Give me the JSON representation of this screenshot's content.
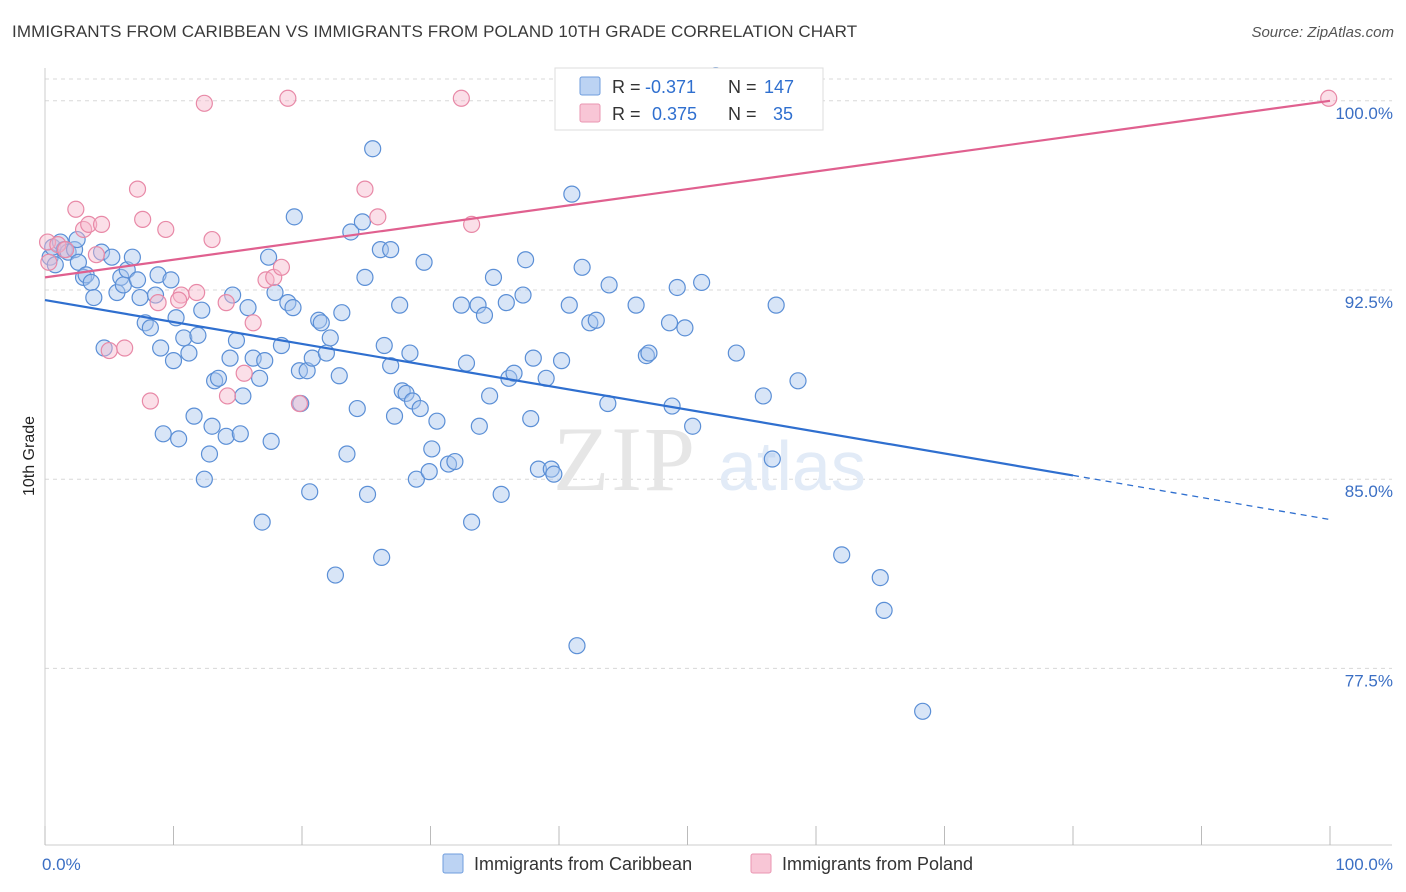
{
  "title": "IMMIGRANTS FROM CARIBBEAN VS IMMIGRANTS FROM POLAND 10TH GRADE CORRELATION CHART",
  "source": "Source: ZipAtlas.com",
  "watermark": {
    "zip": "ZIP",
    "atlas": "atlas"
  },
  "colors": {
    "blue_fill": "#a9c6ee",
    "blue_stroke": "#5b8fd6",
    "blue_line": "#2f6fcf",
    "pink_fill": "#f6b8cc",
    "pink_stroke": "#e889a7",
    "pink_line": "#e0608f",
    "grid": "#d8d8d8",
    "tick_text": "#3b6fc4"
  },
  "legend": {
    "rows": [
      {
        "r_label": "R =",
        "r_value": "-0.371",
        "n_label": "N =",
        "n_value": "147"
      },
      {
        "r_label": "R =",
        "r_value": "0.375",
        "n_label": "N =",
        "n_value": "35"
      }
    ]
  },
  "chart_data": {
    "type": "scatter",
    "title": "IMMIGRANTS FROM CARIBBEAN VS IMMIGRANTS FROM POLAND 10TH GRADE CORRELATION CHART",
    "xlabel": "",
    "ylabel": "10th Grade",
    "xlim": [
      0,
      100
    ],
    "ylim": [
      70.5,
      101.3
    ],
    "x_tick_labels": [
      "0.0%",
      "100.0%"
    ],
    "y_ticks": [
      77.5,
      85.0,
      92.5,
      100.0
    ],
    "y_tick_labels": [
      "77.5%",
      "85.0%",
      "92.5%",
      "100.0%"
    ],
    "grid": true,
    "legend_position": "top-center",
    "series": [
      {
        "name": "Immigrants from Caribbean",
        "r": -0.371,
        "n": 147,
        "trend": {
          "x": [
            0,
            80,
            100
          ],
          "y": [
            92.1,
            85.15,
            83.4
          ],
          "solid_until": 80
        },
        "points": [
          [
            0.4,
            93.8
          ],
          [
            0.6,
            94.2
          ],
          [
            0.8,
            93.5
          ],
          [
            1.2,
            94.4
          ],
          [
            1.5,
            94.1
          ],
          [
            1.8,
            94.0
          ],
          [
            2.3,
            94.1
          ],
          [
            2.5,
            94.5
          ],
          [
            2.6,
            93.6
          ],
          [
            3.0,
            93.0
          ],
          [
            3.2,
            93.1
          ],
          [
            3.6,
            92.8
          ],
          [
            3.8,
            92.2
          ],
          [
            4.4,
            94.0
          ],
          [
            4.6,
            90.2
          ],
          [
            5.2,
            93.8
          ],
          [
            5.6,
            92.4
          ],
          [
            5.9,
            93.0
          ],
          [
            6.1,
            92.7
          ],
          [
            6.4,
            93.3
          ],
          [
            6.8,
            93.8
          ],
          [
            7.2,
            92.9
          ],
          [
            7.4,
            92.2
          ],
          [
            7.8,
            91.2
          ],
          [
            8.2,
            91.0
          ],
          [
            8.6,
            92.3
          ],
          [
            8.8,
            93.1
          ],
          [
            9.0,
            90.2
          ],
          [
            9.2,
            86.8
          ],
          [
            9.8,
            92.9
          ],
          [
            10.0,
            89.7
          ],
          [
            10.2,
            91.4
          ],
          [
            10.4,
            86.6
          ],
          [
            10.8,
            90.6
          ],
          [
            11.2,
            90.0
          ],
          [
            11.6,
            87.5
          ],
          [
            11.9,
            90.7
          ],
          [
            12.2,
            91.7
          ],
          [
            12.4,
            85.0
          ],
          [
            12.8,
            86.0
          ],
          [
            13.0,
            87.1
          ],
          [
            13.2,
            88.9
          ],
          [
            13.5,
            89.0
          ],
          [
            14.1,
            86.7
          ],
          [
            14.4,
            89.8
          ],
          [
            14.6,
            92.3
          ],
          [
            14.9,
            90.5
          ],
          [
            15.2,
            86.8
          ],
          [
            15.4,
            88.3
          ],
          [
            15.8,
            91.8
          ],
          [
            16.2,
            89.8
          ],
          [
            16.7,
            89.0
          ],
          [
            16.9,
            83.3
          ],
          [
            17.1,
            89.7
          ],
          [
            17.4,
            93.8
          ],
          [
            17.6,
            86.5
          ],
          [
            17.9,
            92.4
          ],
          [
            18.4,
            90.3
          ],
          [
            18.9,
            92.0
          ],
          [
            19.3,
            91.8
          ],
          [
            19.4,
            95.4
          ],
          [
            19.9,
            88.0
          ],
          [
            19.8,
            89.3
          ],
          [
            20.4,
            89.3
          ],
          [
            20.6,
            84.5
          ],
          [
            20.8,
            89.8
          ],
          [
            21.3,
            91.3
          ],
          [
            21.5,
            91.2
          ],
          [
            21.9,
            90.0
          ],
          [
            22.2,
            90.6
          ],
          [
            22.6,
            81.2
          ],
          [
            22.9,
            89.1
          ],
          [
            23.1,
            91.6
          ],
          [
            23.5,
            86.0
          ],
          [
            23.8,
            94.8
          ],
          [
            24.3,
            87.8
          ],
          [
            24.7,
            95.2
          ],
          [
            24.9,
            93.0
          ],
          [
            25.1,
            84.4
          ],
          [
            25.5,
            98.1
          ],
          [
            26.1,
            94.1
          ],
          [
            26.2,
            81.9
          ],
          [
            26.4,
            90.3
          ],
          [
            26.9,
            94.1
          ],
          [
            26.9,
            89.5
          ],
          [
            27.2,
            87.5
          ],
          [
            27.6,
            91.9
          ],
          [
            27.8,
            88.5
          ],
          [
            28.1,
            88.4
          ],
          [
            28.4,
            90.0
          ],
          [
            28.6,
            88.1
          ],
          [
            28.9,
            85.0
          ],
          [
            29.2,
            87.8
          ],
          [
            29.5,
            93.6
          ],
          [
            29.9,
            85.3
          ],
          [
            30.1,
            86.2
          ],
          [
            30.5,
            87.3
          ],
          [
            31.4,
            85.6
          ],
          [
            31.9,
            85.7
          ],
          [
            32.4,
            91.9
          ],
          [
            32.8,
            89.6
          ],
          [
            33.2,
            83.3
          ],
          [
            33.7,
            91.9
          ],
          [
            33.8,
            87.1
          ],
          [
            34.2,
            91.5
          ],
          [
            34.6,
            88.3
          ],
          [
            34.9,
            93.0
          ],
          [
            35.5,
            84.4
          ],
          [
            35.9,
            92.0
          ],
          [
            36.1,
            89.0
          ],
          [
            36.5,
            89.2
          ],
          [
            37.2,
            92.3
          ],
          [
            37.4,
            93.7
          ],
          [
            37.8,
            87.4
          ],
          [
            38.0,
            89.8
          ],
          [
            38.4,
            85.4
          ],
          [
            39.0,
            89.0
          ],
          [
            39.4,
            85.4
          ],
          [
            39.6,
            85.2
          ],
          [
            40.2,
            89.7
          ],
          [
            40.8,
            91.9
          ],
          [
            41.0,
            96.3
          ],
          [
            41.4,
            78.4
          ],
          [
            41.8,
            93.4
          ],
          [
            42.4,
            91.2
          ],
          [
            42.9,
            91.3
          ],
          [
            43.8,
            88.0
          ],
          [
            43.9,
            92.7
          ],
          [
            46.0,
            91.9
          ],
          [
            46.8,
            89.9
          ],
          [
            47.0,
            90.0
          ],
          [
            48.6,
            91.2
          ],
          [
            48.8,
            87.9
          ],
          [
            49.2,
            92.6
          ],
          [
            49.8,
            91.0
          ],
          [
            50.4,
            87.1
          ],
          [
            51.1,
            92.8
          ],
          [
            52.2,
            101.0
          ],
          [
            53.8,
            90.0
          ],
          [
            55.9,
            88.3
          ],
          [
            56.6,
            85.8
          ],
          [
            56.9,
            91.9
          ],
          [
            58.6,
            88.9
          ],
          [
            62.0,
            82.0
          ],
          [
            65.0,
            81.1
          ],
          [
            65.3,
            79.8
          ],
          [
            68.3,
            75.8
          ]
        ]
      },
      {
        "name": "Immigrants from Poland",
        "r": 0.375,
        "n": 35,
        "trend": {
          "x": [
            0,
            100
          ],
          "y": [
            93.0,
            100.0
          ]
        },
        "points": [
          [
            0.2,
            94.4
          ],
          [
            0.3,
            93.6
          ],
          [
            1.0,
            94.3
          ],
          [
            1.6,
            94.1
          ],
          [
            2.4,
            95.7
          ],
          [
            3.0,
            94.9
          ],
          [
            3.4,
            95.1
          ],
          [
            4.0,
            93.9
          ],
          [
            4.4,
            95.1
          ],
          [
            5.0,
            90.1
          ],
          [
            6.2,
            90.2
          ],
          [
            7.2,
            96.5
          ],
          [
            7.6,
            95.3
          ],
          [
            8.2,
            88.1
          ],
          [
            8.8,
            92.0
          ],
          [
            9.4,
            94.9
          ],
          [
            10.6,
            92.3
          ],
          [
            10.4,
            92.1
          ],
          [
            11.8,
            92.4
          ],
          [
            12.4,
            99.9
          ],
          [
            13.0,
            94.5
          ],
          [
            14.1,
            92.0
          ],
          [
            14.2,
            88.3
          ],
          [
            15.5,
            89.2
          ],
          [
            16.2,
            91.2
          ],
          [
            17.2,
            92.9
          ],
          [
            17.8,
            93.0
          ],
          [
            18.4,
            93.4
          ],
          [
            18.9,
            100.1
          ],
          [
            19.8,
            88.0
          ],
          [
            24.9,
            96.5
          ],
          [
            25.9,
            95.4
          ],
          [
            32.4,
            100.1
          ],
          [
            33.2,
            95.1
          ],
          [
            99.9,
            100.1
          ]
        ]
      }
    ]
  }
}
